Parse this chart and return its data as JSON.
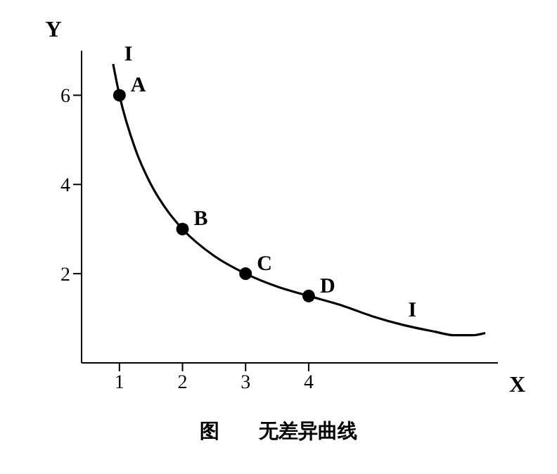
{
  "chart_data": {
    "type": "line",
    "title": "图　　无差异曲线",
    "xlabel": "X",
    "ylabel": "Y",
    "xlim": [
      0.4,
      7
    ],
    "ylim": [
      0,
      7
    ],
    "xticks": [
      1,
      2,
      3,
      4
    ],
    "yticks": [
      2,
      4,
      6
    ],
    "grid": false,
    "line_style": "solid",
    "series": [
      {
        "marker": "none",
        "color": "#000000",
        "x": [
          0.9,
          1,
          1.25,
          1.5,
          1.75,
          2,
          2.5,
          3,
          3.5,
          4,
          4.5,
          5,
          5.5,
          6,
          6.3,
          6.6,
          6.8
        ],
        "values": [
          6.7,
          6,
          4.8,
          4,
          3.43,
          3,
          2.4,
          2,
          1.71,
          1.5,
          1.3,
          1.05,
          0.85,
          0.7,
          0.62,
          0.62,
          0.67
        ]
      },
      {
        "type": "scatter",
        "marker": "circle",
        "color": "#000000",
        "x": [
          1,
          2,
          3,
          4
        ],
        "values": [
          6,
          3,
          2,
          1.5
        ]
      }
    ],
    "annotations": [
      {
        "text": "A",
        "x": 1,
        "y": 6
      },
      {
        "text": "B",
        "x": 2,
        "y": 3
      },
      {
        "text": "C",
        "x": 3,
        "y": 2
      },
      {
        "text": "D",
        "x": 4,
        "y": 1.5
      },
      {
        "text": "I",
        "x": 0.9,
        "y": 6.7
      },
      {
        "text": "I",
        "x": 5.4,
        "y": 0.95
      }
    ]
  }
}
